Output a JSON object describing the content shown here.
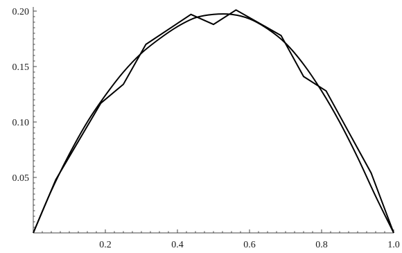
{
  "chart_data": {
    "type": "line",
    "title": "",
    "xlabel": "",
    "ylabel": "",
    "xlim": [
      0,
      1
    ],
    "ylim": [
      0,
      0.2
    ],
    "grid": false,
    "x_ticks": [
      {
        "value": 0.2,
        "label": "0.2"
      },
      {
        "value": 0.4,
        "label": "0.4"
      },
      {
        "value": 0.6,
        "label": "0.6"
      },
      {
        "value": 0.8,
        "label": "0.8"
      },
      {
        "value": 1.0,
        "label": "1.0"
      }
    ],
    "y_ticks": [
      {
        "value": 0.05,
        "label": "0.05"
      },
      {
        "value": 0.1,
        "label": "0.10"
      },
      {
        "value": 0.15,
        "label": "0.15"
      },
      {
        "value": 0.2,
        "label": "0.20"
      }
    ],
    "series": [
      {
        "style": "smooth",
        "color": "#000000",
        "x": [
          0,
          0.05,
          0.1,
          0.15,
          0.2,
          0.25,
          0.3,
          0.35,
          0.4,
          0.45,
          0.5,
          0.55,
          0.6,
          0.65,
          0.7,
          0.75,
          0.8,
          0.85,
          0.9,
          0.95,
          1.0
        ],
        "y": [
          0,
          0.038,
          0.071,
          0.1,
          0.124,
          0.145,
          0.162,
          0.175,
          0.186,
          0.194,
          0.197,
          0.197,
          0.193,
          0.184,
          0.171,
          0.152,
          0.128,
          0.1,
          0.068,
          0.033,
          0
        ]
      },
      {
        "style": "polyline",
        "color": "#000000",
        "x": [
          0,
          0.0625,
          0.1875,
          0.25,
          0.3125,
          0.4375,
          0.5,
          0.5625,
          0.6875,
          0.75,
          0.8125,
          0.9375,
          1.0
        ],
        "y": [
          0,
          0.048,
          0.117,
          0.134,
          0.17,
          0.197,
          0.188,
          0.201,
          0.178,
          0.141,
          0.128,
          0.054,
          0
        ]
      }
    ]
  }
}
